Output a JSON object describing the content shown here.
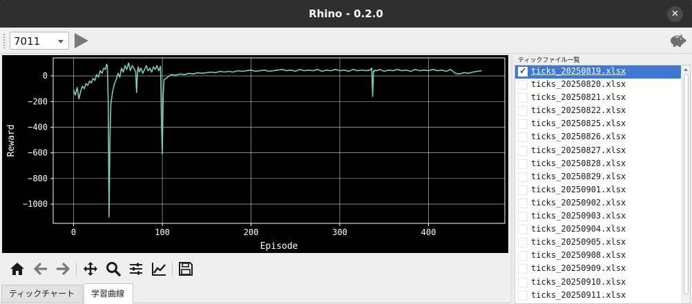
{
  "window": {
    "title": "Rhino - 0.2.0",
    "close_label": "✕"
  },
  "toolbar": {
    "combo_value": "7011",
    "play_icon": "play-icon",
    "right_icon": "piggy-bank-icon"
  },
  "nav_toolbar": {
    "icons": [
      "home-icon",
      "back-arrow-icon",
      "forward-arrow-icon",
      "pan-move-icon",
      "zoom-icon",
      "configure-subplots-icon",
      "edit-axis-curves-icon",
      "save-icon"
    ]
  },
  "tabs": [
    {
      "label": "ティックチャート",
      "active": false
    },
    {
      "label": "学習曲線",
      "active": true
    }
  ],
  "file_panel": {
    "label": "ティックファイル一覧",
    "files": [
      {
        "name": "ticks_20250819.xlsx",
        "checked": true,
        "selected": true
      },
      {
        "name": "ticks_20250820.xlsx",
        "checked": false,
        "selected": false
      },
      {
        "name": "ticks_20250821.xlsx",
        "checked": false,
        "selected": false
      },
      {
        "name": "ticks_20250822.xlsx",
        "checked": false,
        "selected": false
      },
      {
        "name": "ticks_20250825.xlsx",
        "checked": false,
        "selected": false
      },
      {
        "name": "ticks_20250826.xlsx",
        "checked": false,
        "selected": false
      },
      {
        "name": "ticks_20250827.xlsx",
        "checked": false,
        "selected": false
      },
      {
        "name": "ticks_20250828.xlsx",
        "checked": false,
        "selected": false
      },
      {
        "name": "ticks_20250829.xlsx",
        "checked": false,
        "selected": false
      },
      {
        "name": "ticks_20250901.xlsx",
        "checked": false,
        "selected": false
      },
      {
        "name": "ticks_20250902.xlsx",
        "checked": false,
        "selected": false
      },
      {
        "name": "ticks_20250903.xlsx",
        "checked": false,
        "selected": false
      },
      {
        "name": "ticks_20250904.xlsx",
        "checked": false,
        "selected": false
      },
      {
        "name": "ticks_20250905.xlsx",
        "checked": false,
        "selected": false
      },
      {
        "name": "ticks_20250908.xlsx",
        "checked": false,
        "selected": false
      },
      {
        "name": "ticks_20250909.xlsx",
        "checked": false,
        "selected": false
      },
      {
        "name": "ticks_20250910.xlsx",
        "checked": false,
        "selected": false
      },
      {
        "name": "ticks_20250911.xlsx",
        "checked": false,
        "selected": false
      }
    ]
  },
  "colors": {
    "plot_background": "#000000",
    "line": "#7fcdbb",
    "grid": "#ffffff",
    "selection": "#3f79cf"
  },
  "chart_data": {
    "type": "line",
    "title": "",
    "xlabel": "Episode",
    "ylabel": "Reward",
    "xlim": [
      -23,
      486
    ],
    "ylim": [
      -1150,
      140
    ],
    "xticks": [
      0,
      100,
      200,
      300,
      400
    ],
    "yticks": [
      0,
      -200,
      -400,
      -600,
      -800,
      -1000
    ],
    "xtick_labels": [
      "0",
      "100",
      "200",
      "300",
      "400"
    ],
    "ytick_labels": [
      "0",
      "−200",
      "−400",
      "−600",
      "−800",
      "−1000"
    ],
    "grid": true,
    "series": [
      {
        "x": [
          0,
          2,
          4,
          6,
          8,
          10,
          12,
          14,
          16,
          18,
          20,
          22,
          24,
          26,
          28,
          30,
          32,
          34,
          36,
          37,
          38,
          39,
          40,
          41,
          42,
          44,
          46,
          48,
          50,
          52,
          54,
          56,
          58,
          60,
          62,
          64,
          66,
          68,
          70,
          71,
          72,
          73,
          74,
          76,
          78,
          80,
          82,
          84,
          86,
          88,
          90,
          92,
          94,
          96,
          98,
          99,
          100,
          101,
          102,
          104,
          106,
          108,
          110,
          115,
          120,
          125,
          130,
          135,
          140,
          145,
          150,
          155,
          160,
          165,
          170,
          175,
          180,
          185,
          190,
          195,
          200,
          205,
          210,
          215,
          220,
          225,
          230,
          235,
          240,
          245,
          250,
          255,
          260,
          265,
          270,
          275,
          280,
          285,
          290,
          295,
          300,
          305,
          310,
          315,
          320,
          325,
          330,
          334,
          336,
          337,
          338,
          339,
          340,
          342,
          345,
          350,
          355,
          360,
          365,
          370,
          375,
          380,
          385,
          390,
          395,
          400,
          405,
          410,
          415,
          420,
          425,
          430,
          435,
          440,
          445,
          450,
          455,
          460
        ],
        "values": [
          -110,
          -150,
          -90,
          -180,
          -120,
          -80,
          -100,
          -60,
          -75,
          -40,
          -55,
          -20,
          -35,
          10,
          -10,
          40,
          20,
          60,
          50,
          90,
          80,
          -200,
          -1100,
          -500,
          -220,
          -120,
          -60,
          -30,
          20,
          -10,
          60,
          30,
          80,
          50,
          100,
          40,
          80,
          60,
          30,
          -130,
          40,
          70,
          30,
          60,
          20,
          50,
          80,
          40,
          60,
          30,
          70,
          50,
          80,
          40,
          75,
          -350,
          -610,
          -150,
          -30,
          -20,
          -10,
          0,
          10,
          5,
          15,
          10,
          20,
          15,
          25,
          20,
          25,
          30,
          25,
          35,
          30,
          35,
          30,
          40,
          35,
          40,
          45,
          35,
          40,
          45,
          35,
          40,
          45,
          50,
          40,
          45,
          35,
          50,
          40,
          45,
          40,
          50,
          35,
          45,
          40,
          50,
          40,
          45,
          35,
          50,
          40,
          45,
          40,
          45,
          60,
          -160,
          40,
          35,
          45,
          40,
          50,
          35,
          45,
          40,
          50,
          40,
          45,
          35,
          50,
          40,
          45,
          40,
          50,
          40,
          45,
          35,
          50,
          20,
          15,
          25,
          20,
          30,
          35,
          40
        ]
      }
    ]
  }
}
